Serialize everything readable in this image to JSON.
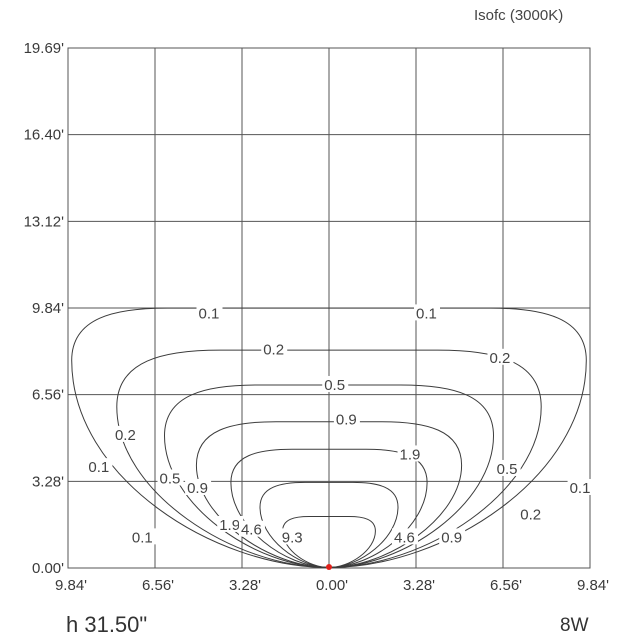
{
  "caption": "Isofc (3000K)",
  "footer": {
    "mounting_height": "h 31.50\"",
    "power": "8W"
  },
  "chart_data": {
    "type": "contour",
    "title": "Isofc (3000K)",
    "x_ticks": [
      "9.84'",
      "6.56'",
      "3.28'",
      "0.00'",
      "3.28'",
      "6.56'",
      "9.84'"
    ],
    "y_ticks": [
      "19.69'",
      "16.40'",
      "13.12'",
      "9.84'",
      "6.56'",
      "3.28'",
      "0.00'"
    ],
    "xlim": [
      -9.84,
      9.84
    ],
    "ylim": [
      0,
      19.69
    ],
    "grid": true,
    "source_marker_color": "#e0201a",
    "contours": [
      {
        "level": "0.1",
        "half_width": 9.7,
        "top": 9.84,
        "corner": 3.6,
        "labels": [
          {
            "text": "0.1",
            "x": -4.92,
            "y": 9.64
          },
          {
            "text": "0.1",
            "x": 3.28,
            "y": 9.64
          },
          {
            "text": "0.1",
            "x": -9.07,
            "y": 3.82
          },
          {
            "text": "0.1",
            "x": 9.07,
            "y": 3.03
          },
          {
            "text": "0.1",
            "x": -7.43,
            "y": 1.16
          }
        ]
      },
      {
        "level": "0.2",
        "half_width": 8.0,
        "top": 8.25,
        "corner": 3.9,
        "labels": [
          {
            "text": "0.2",
            "x": -2.48,
            "y": 8.27
          },
          {
            "text": "0.2",
            "x": 6.05,
            "y": 7.96
          },
          {
            "text": "0.2",
            "x": -8.07,
            "y": 5.04
          },
          {
            "text": "0.2",
            "x": 7.21,
            "y": 2.03
          }
        ]
      },
      {
        "level": "0.5",
        "half_width": 6.2,
        "top": 6.93,
        "corner": 3.5,
        "labels": [
          {
            "text": "0.5",
            "x": -0.18,
            "y": 6.93
          },
          {
            "text": "0.5",
            "x": -6.39,
            "y": 3.39
          },
          {
            "text": "0.5",
            "x": 6.32,
            "y": 3.75
          }
        ]
      },
      {
        "level": "0.9",
        "half_width": 5.0,
        "top": 5.54,
        "corner": 3.0,
        "labels": [
          {
            "text": "0.9",
            "x": 0.26,
            "y": 5.63
          },
          {
            "text": "0.9",
            "x": -5.35,
            "y": 3.03
          },
          {
            "text": "0.9",
            "x": 4.23,
            "y": 1.16
          }
        ]
      },
      {
        "level": "1.9",
        "half_width": 3.7,
        "top": 4.5,
        "corner": 2.3,
        "labels": [
          {
            "text": "1.9",
            "x": 2.66,
            "y": 4.3
          },
          {
            "text": "1.9",
            "x": -4.14,
            "y": 1.63
          }
        ]
      },
      {
        "level": "4.6",
        "half_width": 2.6,
        "top": 3.24,
        "corner": 1.7,
        "labels": [
          {
            "text": "4.6",
            "x": -3.32,
            "y": 1.45
          },
          {
            "text": "4.6",
            "x": 2.45,
            "y": 1.16
          }
        ]
      },
      {
        "level": "9.3",
        "half_width": 1.75,
        "top": 1.95,
        "corner": 1.0,
        "labels": [
          {
            "text": "9.3",
            "x": -1.78,
            "y": 1.16
          }
        ]
      }
    ]
  }
}
